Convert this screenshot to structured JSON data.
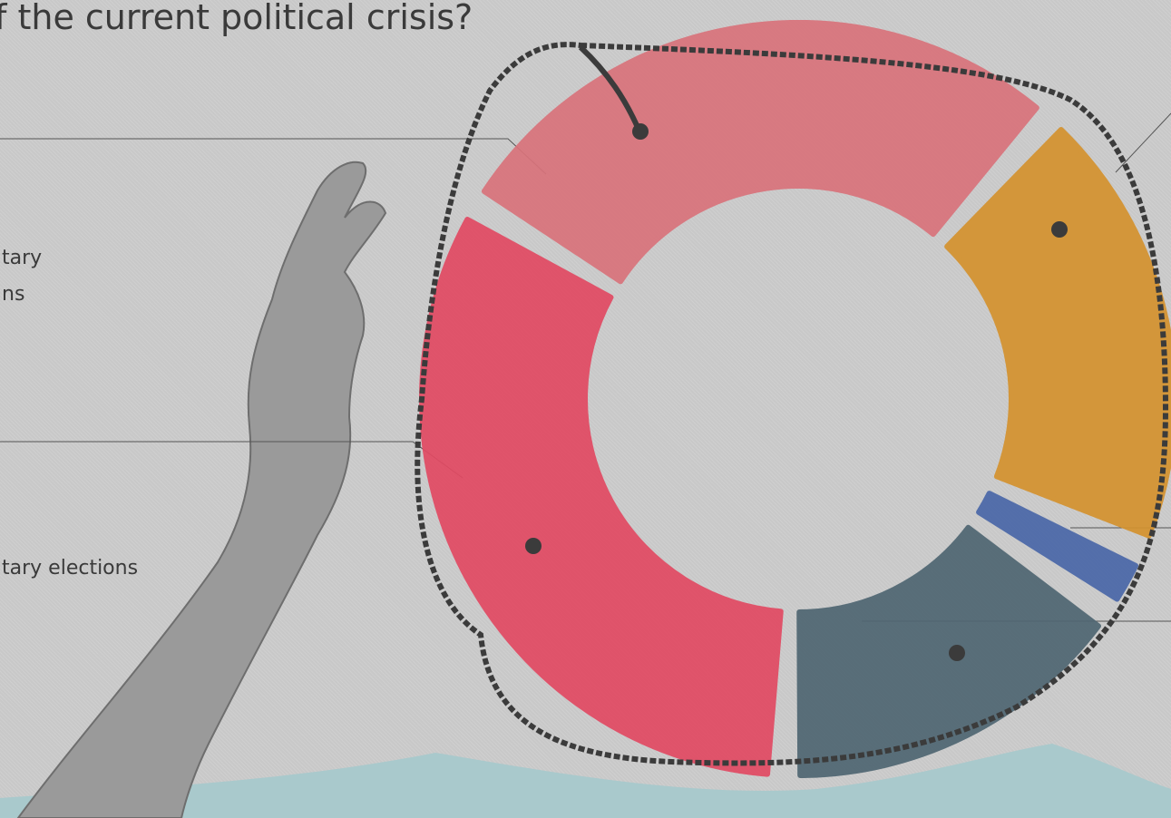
{
  "chart_data": {
    "type": "donut",
    "title": "f the current political crisis?",
    "categories": [
      null,
      null,
      null,
      null,
      null
    ],
    "values": [
      28,
      20,
      3,
      16,
      33
    ],
    "colors": [
      "#d9737b",
      "#d4922e",
      "#4a67a8",
      "#4f6672",
      "#e24a63"
    ],
    "start_angle": -59,
    "annotations": [
      "tary",
      "ns",
      "tary elections"
    ]
  }
}
